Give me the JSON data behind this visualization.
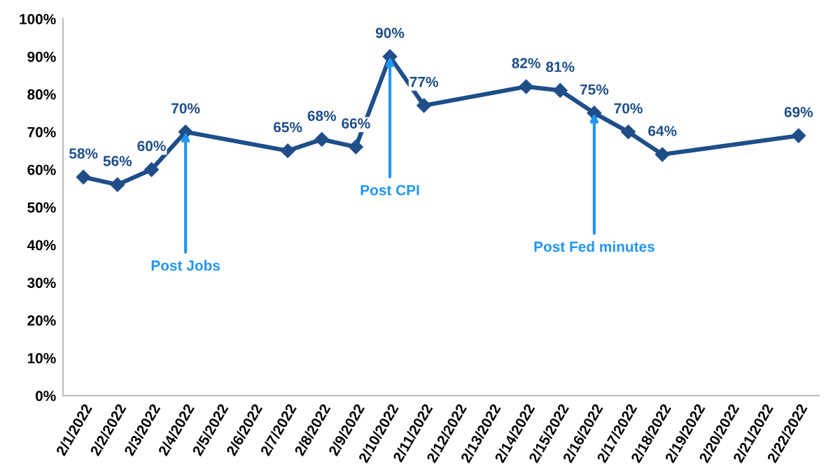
{
  "chart_data": {
    "type": "line",
    "categories": [
      "2/1/2022",
      "2/2/2022",
      "2/3/2022",
      "2/4/2022",
      "2/5/2022",
      "2/6/2022",
      "2/7/2022",
      "2/8/2022",
      "2/9/2022",
      "2/10/2022",
      "2/11/2022",
      "2/12/2022",
      "2/13/2022",
      "2/14/2022",
      "2/15/2022",
      "2/16/2022",
      "2/17/2022",
      "2/18/2022",
      "2/19/2022",
      "2/20/2022",
      "2/21/2022",
      "2/22/2022"
    ],
    "series": [
      {
        "color": "#1f4e89",
        "values": [
          58,
          56,
          60,
          70,
          null,
          null,
          65,
          68,
          66,
          90,
          77,
          null,
          null,
          82,
          81,
          75,
          70,
          64,
          null,
          null,
          null,
          69
        ],
        "value_labels": [
          "58%",
          "56%",
          "60%",
          "70%",
          null,
          null,
          "65%",
          "68%",
          "66%",
          "90%",
          "77%",
          null,
          null,
          "82%",
          "81%",
          "75%",
          "70%",
          "64%",
          null,
          null,
          null,
          "69%"
        ]
      }
    ],
    "marker": "diamond",
    "line_style": "solid",
    "grid": false,
    "legend": false,
    "ylim": [
      0,
      100
    ],
    "yticks": [
      {
        "value": 0,
        "label": "0%"
      },
      {
        "value": 10,
        "label": "10%"
      },
      {
        "value": 20,
        "label": "20%"
      },
      {
        "value": 30,
        "label": "30%"
      },
      {
        "value": 40,
        "label": "40%"
      },
      {
        "value": 50,
        "label": "50%"
      },
      {
        "value": 60,
        "label": "60%"
      },
      {
        "value": 70,
        "label": "70%"
      },
      {
        "value": 80,
        "label": "80%"
      },
      {
        "value": 90,
        "label": "90%"
      },
      {
        "value": 100,
        "label": "100%"
      }
    ],
    "annotations": [
      {
        "text": "Post Jobs",
        "x": "2/4/2022",
        "y": 70
      },
      {
        "text": "Post CPI",
        "x": "2/10/2022",
        "y": 90
      },
      {
        "text": "Post Fed minutes",
        "x": "2/16/2022",
        "y": 75
      }
    ]
  }
}
